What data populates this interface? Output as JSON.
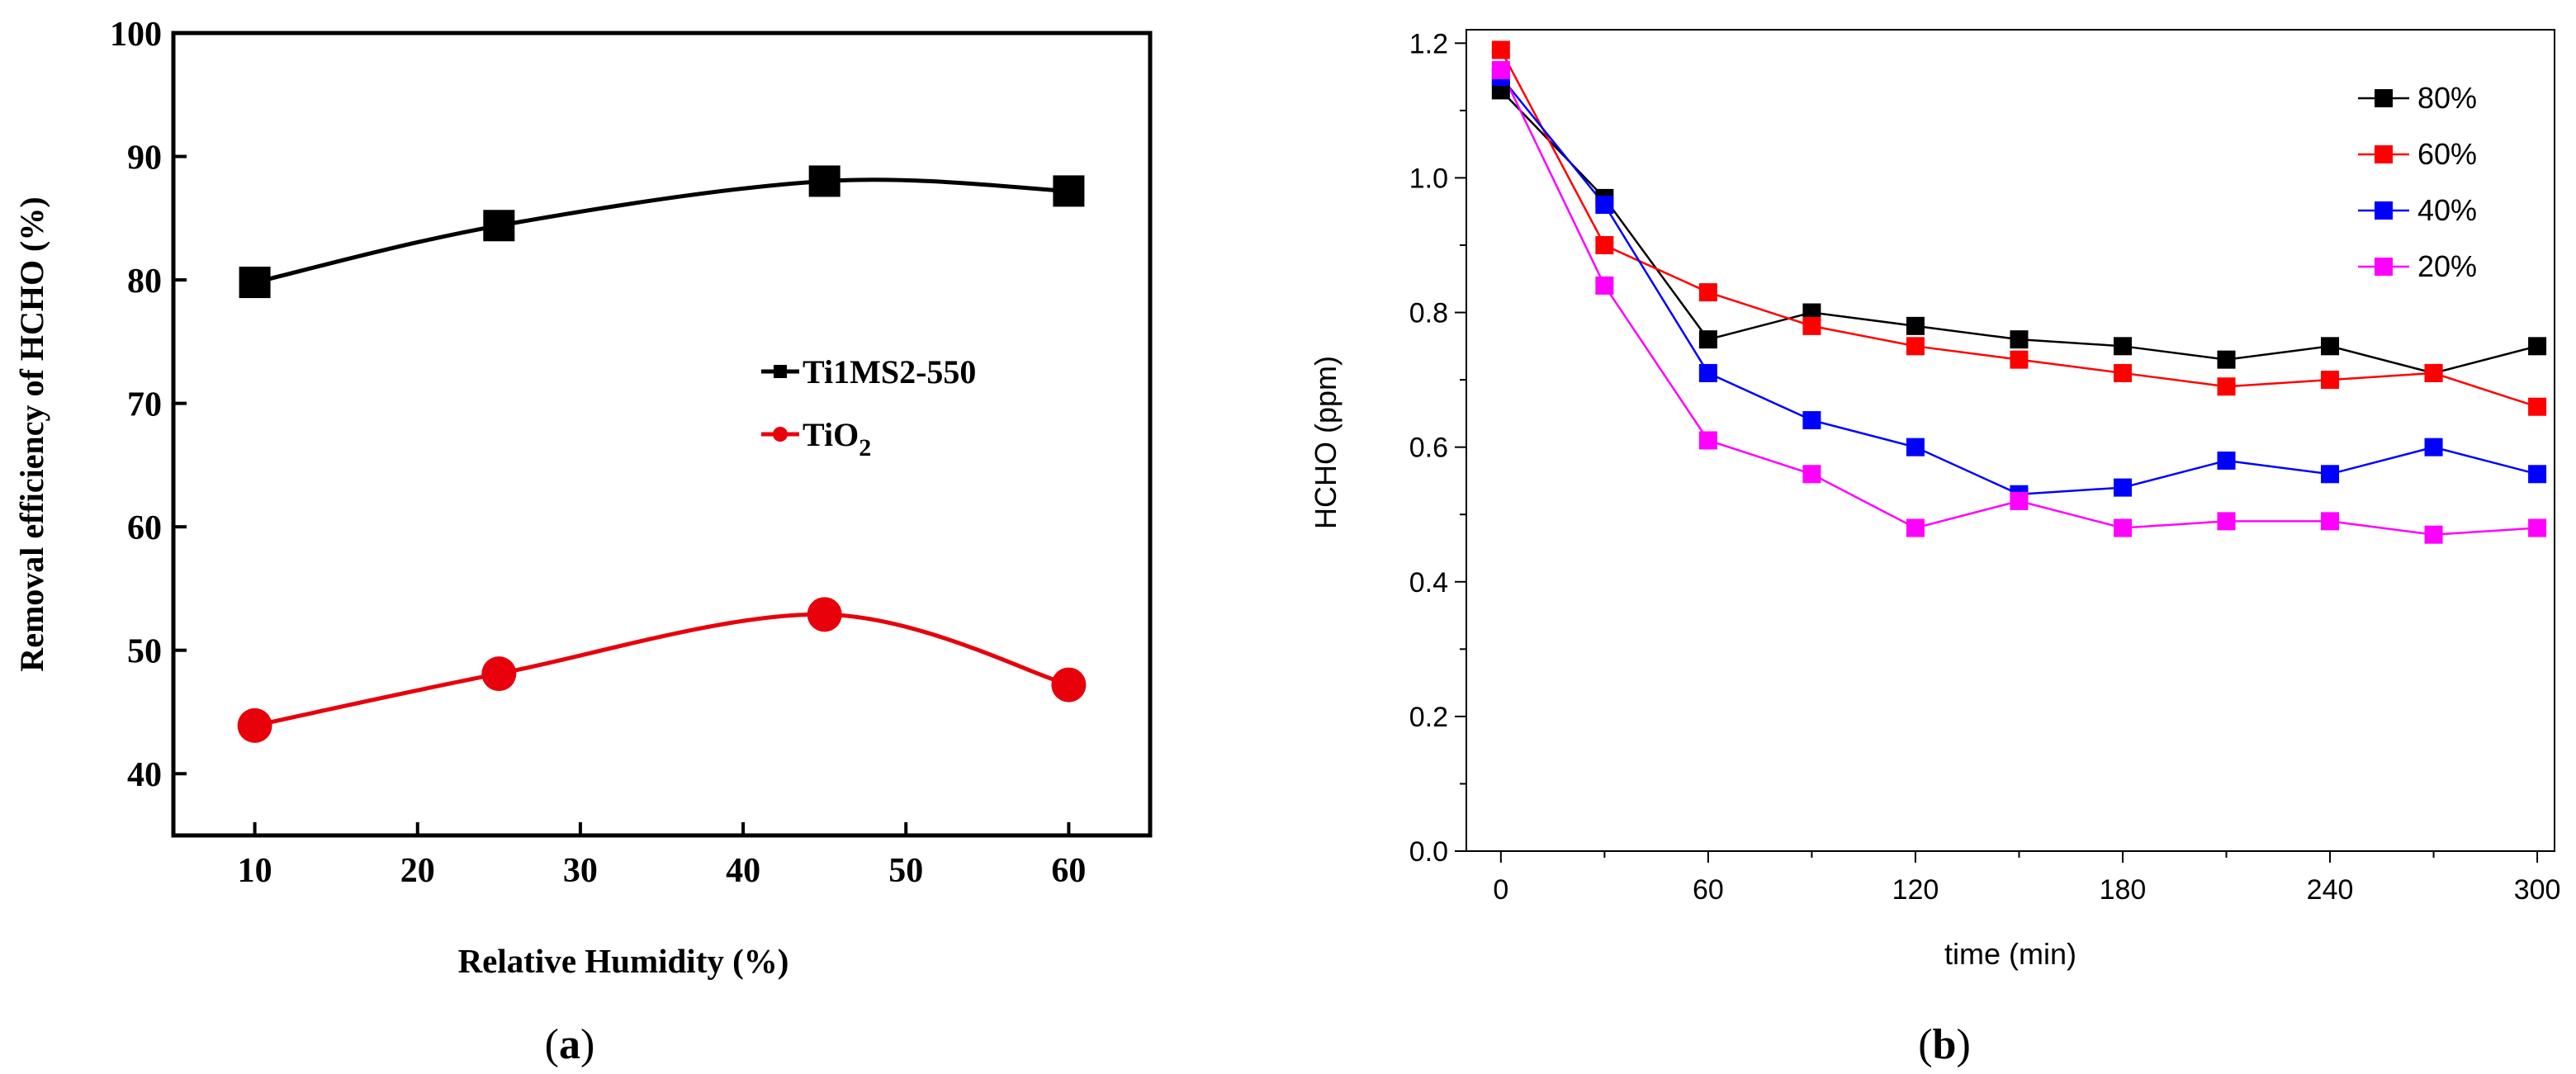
{
  "chart_data": [
    {
      "type": "line",
      "panel_label": "(a)",
      "panel_letter": "a",
      "xlabel": "Relative Humidity (%)",
      "ylabel": "Removal efficiency of HCHO (%)",
      "xlim": [
        5,
        65
      ],
      "ylim": [
        35,
        100
      ],
      "xticks": [
        10,
        20,
        30,
        40,
        50,
        60
      ],
      "yticks": [
        40,
        50,
        60,
        70,
        80,
        90,
        100
      ],
      "grid": false,
      "legend_position": "middle-right",
      "series": [
        {
          "name": "Ti1MS2-550",
          "color": "#000000",
          "marker": "square",
          "x": [
            10,
            25,
            45,
            60
          ],
          "y": [
            79.8,
            84.4,
            88.0,
            87.2
          ]
        },
        {
          "name": "TiO2",
          "name_main": "TiO",
          "name_sub": "2",
          "color": "#e8000b",
          "marker": "circle",
          "x": [
            10,
            25,
            45,
            60
          ],
          "y": [
            43.9,
            48.1,
            52.9,
            47.2
          ]
        }
      ]
    },
    {
      "type": "line",
      "panel_label": "(b)",
      "panel_letter": "b",
      "xlabel": "time (min)",
      "ylabel": "HCHO (ppm)",
      "xlim": [
        -10,
        305
      ],
      "ylim": [
        0,
        1.22
      ],
      "xticks": [
        0,
        60,
        120,
        180,
        240,
        300
      ],
      "yticks": [
        "0.0",
        "0.2",
        "0.4",
        "0.6",
        "0.8",
        "1.0",
        "1.2"
      ],
      "grid": false,
      "legend_position": "top-right",
      "x": [
        0,
        30,
        60,
        90,
        120,
        150,
        180,
        210,
        240,
        270,
        300
      ],
      "series": [
        {
          "name": "80%",
          "color": "#000000",
          "marker": "square",
          "values": [
            1.13,
            0.97,
            0.76,
            0.8,
            0.78,
            0.76,
            0.75,
            0.73,
            0.75,
            0.71,
            0.75
          ]
        },
        {
          "name": "60%",
          "color": "#ff0000",
          "marker": "square",
          "values": [
            1.19,
            0.9,
            0.83,
            0.78,
            0.75,
            0.73,
            0.71,
            0.69,
            0.7,
            0.71,
            0.66
          ]
        },
        {
          "name": "40%",
          "color": "#0000ff",
          "marker": "square",
          "values": [
            1.15,
            0.96,
            0.71,
            0.64,
            0.6,
            0.53,
            0.54,
            0.58,
            0.56,
            0.6,
            0.56
          ]
        },
        {
          "name": "20%",
          "color": "#ff00ff",
          "marker": "square",
          "values": [
            1.16,
            0.84,
            0.61,
            0.56,
            0.48,
            0.52,
            0.48,
            0.49,
            0.49,
            0.47,
            0.48
          ]
        }
      ]
    }
  ]
}
